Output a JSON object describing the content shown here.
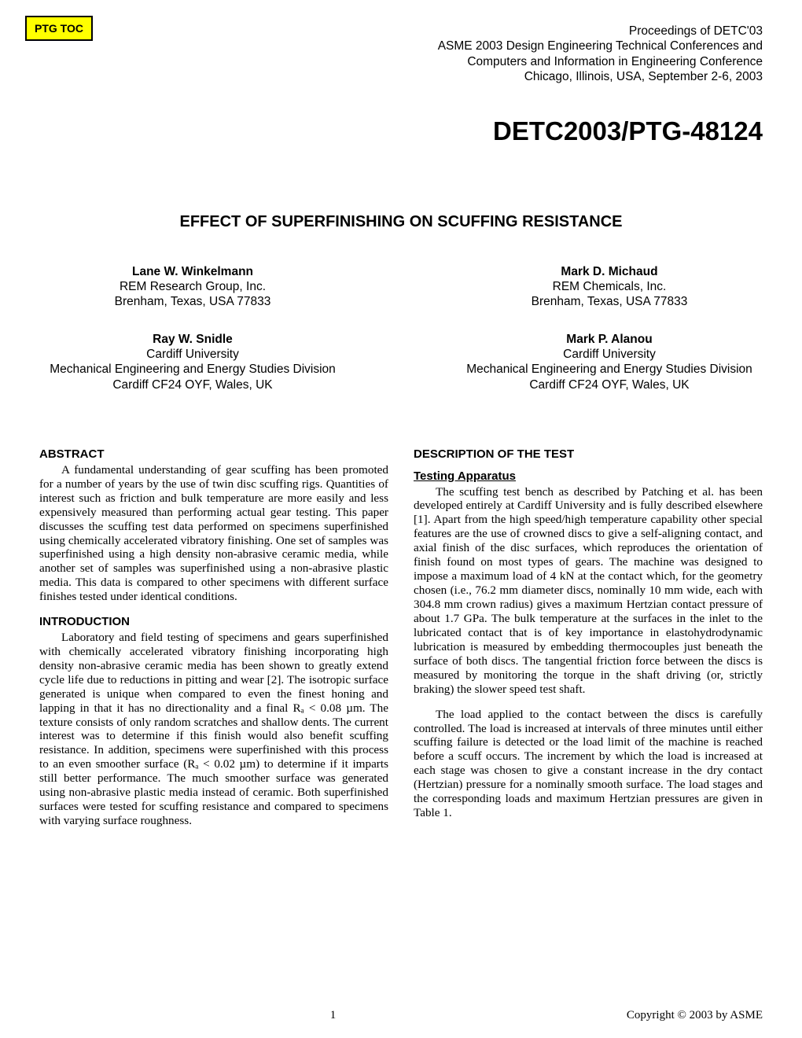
{
  "toc_button": "PTG TOC",
  "proceedings": {
    "l1": "Proceedings of DETC'03",
    "l2": "ASME 2003 Design Engineering Technical Conferences and",
    "l3": "Computers and Information in Engineering Conference",
    "l4": "Chicago, Illinois, USA, September 2-6, 2003"
  },
  "paper_number": "DETC2003/PTG-48124",
  "title": "EFFECT OF SUPERFINISHING ON SCUFFING RESISTANCE",
  "authors": [
    {
      "name": "Lane W. Winkelmann",
      "l1": "REM Research Group, Inc.",
      "l2": "Brenham, Texas, USA 77833"
    },
    {
      "name": "Mark D. Michaud",
      "l1": "REM Chemicals, Inc.",
      "l2": "Brenham, Texas, USA 77833"
    },
    {
      "name": "Ray W. Snidle",
      "l1": "Cardiff University",
      "l2": "Mechanical Engineering and Energy Studies Division",
      "l3": "Cardiff CF24 OYF, Wales, UK"
    },
    {
      "name": "Mark P. Alanou",
      "l1": "Cardiff University",
      "l2": "Mechanical Engineering and Energy Studies Division",
      "l3": "Cardiff CF24 OYF, Wales, UK"
    }
  ],
  "sections": {
    "abstract_head": "ABSTRACT",
    "abstract_body": "A fundamental understanding of gear scuffing has been promoted for a number of years by the use of twin disc scuffing rigs.  Quantities of interest such as friction and bulk temperature are more easily and less expensively measured than performing actual gear testing.  This paper discusses the scuffing test data performed on specimens superfinished using chemically accelerated vibratory finishing. One set of samples was superfinished using a high density non-abrasive ceramic media, while another set of samples was superfinished using a non-abrasive plastic media.  This data is compared to other specimens with different surface finishes tested under identical conditions.",
    "intro_head": "INTRODUCTION",
    "intro_body": "Laboratory and field testing of specimens and gears superfinished with chemically accelerated vibratory finishing incorporating high density non-abrasive ceramic media has been shown to greatly extend cycle life due to reductions in pitting and wear [2].  The isotropic surface generated is unique when compared to even the finest honing and lapping in that it has no directionality and a final Rₐ < 0.08 µm.  The texture consists of only random scratches and shallow dents.  The current interest was to determine if this finish would also benefit scuffing resistance.  In addition, specimens were superfinished with this process to an even smoother surface (Rₐ < 0.02 µm) to determine if it imparts still better performance. The much smoother surface was generated using non-abrasive plastic media instead of ceramic.  Both superfinished surfaces were tested for scuffing resistance and compared to specimens with varying surface roughness.",
    "desc_head": "DESCRIPTION OF THE TEST",
    "testing_head": "Testing Apparatus",
    "testing_p1": "The scuffing test bench as described by Patching et al. has been developed entirely at Cardiff University and is fully described elsewhere [1].  Apart from the high speed/high temperature capability other special features are the use of crowned discs to give a self-aligning contact, and axial finish of the disc surfaces, which reproduces the orientation of finish found on most types of gears. The machine was designed to impose a maximum load of 4 kN at the contact which, for the geometry chosen (i.e., 76.2 mm diameter discs, nominally 10 mm wide, each with 304.8 mm crown radius) gives a maximum Hertzian contact pressure of about 1.7 GPa.  The bulk temperature at the surfaces in the inlet to the lubricated contact that is of key importance in elastohydrodynamic lubrication is measured by embedding thermocouples just beneath the surface of both discs.  The tangential friction force between the discs is measured by monitoring the torque in the shaft driving (or, strictly braking) the slower speed test shaft.",
    "testing_p2": "The load applied to the contact between the discs is carefully controlled. The load is increased at intervals of three minutes until either scuffing failure is detected or the load limit of the machine is reached before a scuff occurs.  The increment by which the load is increased at each stage was chosen to give a constant increase in the dry contact (Hertzian) pressure for a nominally smooth surface.  The load stages and the corresponding loads and maximum Hertzian pressures are given in Table 1."
  },
  "footer": {
    "page": "1",
    "copyright": "Copyright © 2003 by ASME"
  },
  "colors": {
    "toc_bg": "#ffff00",
    "toc_border": "#000000",
    "page_bg": "#ffffff",
    "text": "#000000"
  },
  "typography": {
    "body_family": "Times New Roman",
    "heading_family": "Arial",
    "body_size_pt": 11,
    "title_size_pt": 15,
    "paper_number_size_pt": 25
  }
}
